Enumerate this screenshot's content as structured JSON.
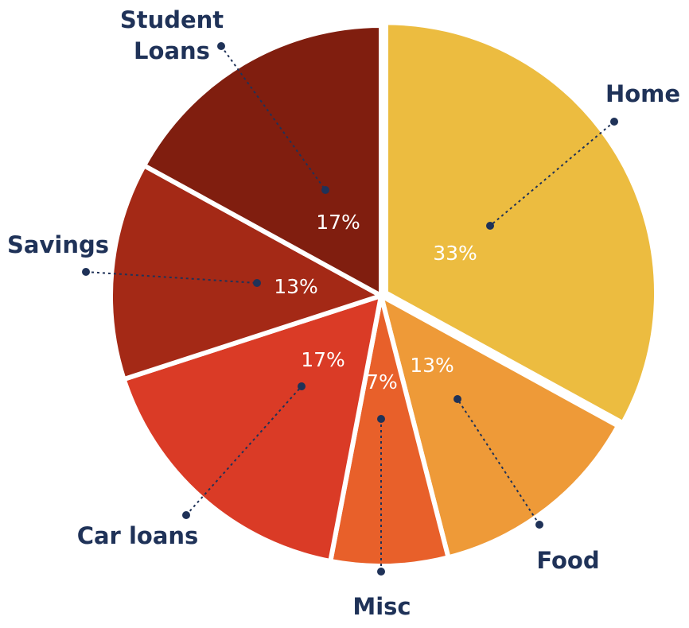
{
  "chart_data": {
    "type": "pie",
    "categories": [
      "Home",
      "Food",
      "Misc",
      "Car loans",
      "Savings",
      "Student Loans"
    ],
    "values": [
      33,
      13,
      7,
      17,
      13,
      17
    ],
    "value_labels": [
      "33%",
      "13%",
      "7%",
      "17%",
      "13%",
      "17%"
    ],
    "colors": [
      "#ECBC40",
      "#EE9A38",
      "#E8602A",
      "#DA3B26",
      "#A42916",
      "#801E0F"
    ],
    "label_color": "#1F3258",
    "value_label_color": "#FFFFFF",
    "title": ""
  }
}
